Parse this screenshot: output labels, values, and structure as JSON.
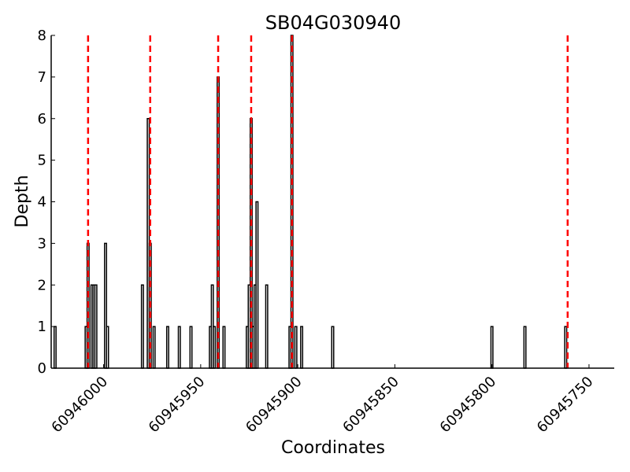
{
  "chart_data": {
    "type": "bar",
    "title": "SB04G030940",
    "xlabel": "Coordinates",
    "ylabel": "Depth",
    "x_reversed": true,
    "xlim": [
      60946027,
      60945737
    ],
    "ylim": [
      0,
      8
    ],
    "xticks": [
      60946000,
      60945950,
      60945900,
      60945850,
      60945800,
      60945750
    ],
    "yticks": [
      0,
      1,
      2,
      3,
      4,
      5,
      6,
      7,
      8
    ],
    "bar_width": 1,
    "bar_fill": "#ffffff",
    "bar_edge": "#000000",
    "grid": false,
    "points": [
      {
        "x": 60946025,
        "y": 1
      },
      {
        "x": 60946009,
        "y": 1
      },
      {
        "x": 60946008,
        "y": 3
      },
      {
        "x": 60946006,
        "y": 2
      },
      {
        "x": 60946005,
        "y": 2
      },
      {
        "x": 60946004,
        "y": 2
      },
      {
        "x": 60945999,
        "y": 3
      },
      {
        "x": 60945998,
        "y": 1
      },
      {
        "x": 60945980,
        "y": 2
      },
      {
        "x": 60945977,
        "y": 6
      },
      {
        "x": 60945976,
        "y": 3
      },
      {
        "x": 60945974,
        "y": 1
      },
      {
        "x": 60945967,
        "y": 1
      },
      {
        "x": 60945961,
        "y": 1
      },
      {
        "x": 60945955,
        "y": 1
      },
      {
        "x": 60945945,
        "y": 1
      },
      {
        "x": 60945944,
        "y": 2
      },
      {
        "x": 60945943,
        "y": 1
      },
      {
        "x": 60945941,
        "y": 7
      },
      {
        "x": 60945938,
        "y": 1
      },
      {
        "x": 60945926,
        "y": 1
      },
      {
        "x": 60945925,
        "y": 2
      },
      {
        "x": 60945924,
        "y": 6
      },
      {
        "x": 60945923,
        "y": 1
      },
      {
        "x": 60945922,
        "y": 2
      },
      {
        "x": 60945921,
        "y": 4
      },
      {
        "x": 60945916,
        "y": 2
      },
      {
        "x": 60945904,
        "y": 1
      },
      {
        "x": 60945903,
        "y": 8
      },
      {
        "x": 60945901,
        "y": 1
      },
      {
        "x": 60945898,
        "y": 1
      },
      {
        "x": 60945882,
        "y": 1
      },
      {
        "x": 60945800,
        "y": 1
      },
      {
        "x": 60945783,
        "y": 1
      },
      {
        "x": 60945762,
        "y": 1
      }
    ],
    "reference_lines": [
      60946008,
      60945976,
      60945941,
      60945924,
      60945903,
      60945761
    ],
    "reference_line_color": "#ff0000",
    "reference_line_style": "dashed"
  }
}
